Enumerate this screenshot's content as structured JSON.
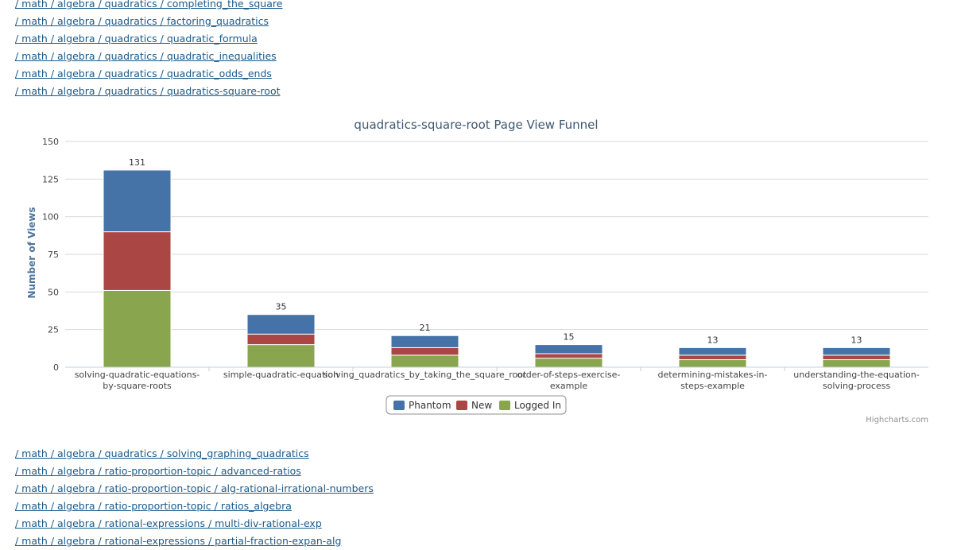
{
  "top_links": [
    "/ math / algebra / quadratics / completing_the_square",
    "/ math / algebra / quadratics / factoring_quadratics",
    "/ math / algebra / quadratics / quadratic_formula",
    "/ math / algebra / quadratics / quadratic_inequalities",
    "/ math / algebra / quadratics / quadratic_odds_ends",
    "/ math / algebra / quadratics / quadratics-square-root"
  ],
  "bottom_links": [
    "/ math / algebra / quadratics / solving_graphing_quadratics",
    "/ math / algebra / ratio-proportion-topic / advanced-ratios",
    "/ math / algebra / ratio-proportion-topic / alg-rational-irrational-numbers",
    "/ math / algebra / ratio-proportion-topic / ratios_algebra",
    "/ math / algebra / rational-expressions / multi-div-rational-exp",
    "/ math / algebra / rational-expressions / partial-fraction-expan-alg"
  ],
  "chart_data": {
    "type": "bar",
    "stacked": true,
    "title": "quadratics-square-root Page View Funnel",
    "xlabel": "",
    "ylabel": "Number of Views",
    "ylim": [
      0,
      150
    ],
    "yticks": [
      0,
      25,
      50,
      75,
      100,
      125,
      150
    ],
    "grid": true,
    "legend_position": "bottom-center",
    "categories": [
      [
        "solving-quadratic-equations-",
        "by-square-roots"
      ],
      [
        "simple-quadratic-equation"
      ],
      [
        "solving_quadratics_by_taking_the_square_root"
      ],
      [
        "order-of-steps-exercise-",
        "example"
      ],
      [
        "determining-mistakes-in-",
        "steps-example"
      ],
      [
        "understanding-the-equation-",
        "solving-process"
      ]
    ],
    "series": [
      {
        "name": "Phantom",
        "color": "#4572a7",
        "values": [
          41,
          13,
          8,
          6,
          5,
          5
        ]
      },
      {
        "name": "New",
        "color": "#aa4643",
        "values": [
          39,
          7,
          5,
          3,
          3,
          3
        ]
      },
      {
        "name": "Logged In",
        "color": "#89a54e",
        "values": [
          51,
          15,
          8,
          6,
          5,
          5
        ]
      }
    ],
    "totals": [
      131,
      35,
      21,
      15,
      13,
      13
    ],
    "credit": "Highcharts.com"
  }
}
